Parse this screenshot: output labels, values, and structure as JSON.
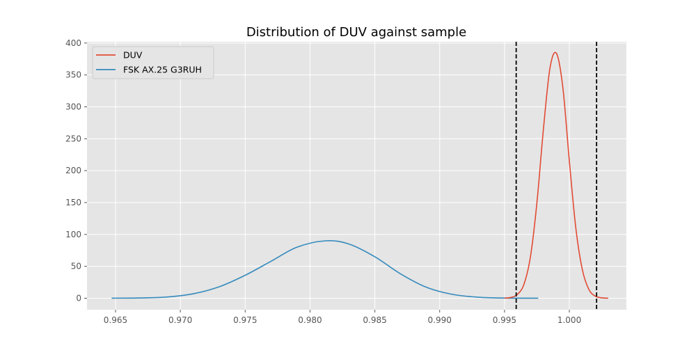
{
  "chart_data": {
    "type": "line",
    "title": "Distribution of DUV against sample",
    "xlabel": "",
    "ylabel": "",
    "xlim": [
      0.9628,
      1.0044
    ],
    "ylim": [
      -18,
      402
    ],
    "xticks": [
      0.965,
      0.97,
      0.975,
      0.98,
      0.985,
      0.99,
      0.995,
      1.0
    ],
    "xtick_labels": [
      "0.965",
      "0.970",
      "0.975",
      "0.980",
      "0.985",
      "0.990",
      "0.995",
      "1.000"
    ],
    "yticks": [
      0,
      50,
      100,
      150,
      200,
      250,
      300,
      350,
      400
    ],
    "ytick_labels": [
      "0",
      "50",
      "100",
      "150",
      "200",
      "250",
      "300",
      "350",
      "400"
    ],
    "grid": true,
    "legend_position": "top-left",
    "background": "#E5E5E5",
    "series": [
      {
        "name": "DUV",
        "color": "#E24A33",
        "x": [
          0.995,
          0.9955,
          0.996,
          0.9965,
          0.997,
          0.9975,
          0.998,
          0.9985,
          0.999,
          0.9995,
          1.0,
          1.0005,
          1.001,
          1.0015,
          1.002,
          1.0025,
          1.003
        ],
        "y": [
          0.2,
          1.3,
          6.0,
          22,
          65,
          150,
          265,
          360,
          384,
          330,
          215,
          110,
          45,
          14,
          3.3,
          0.6,
          0.1
        ]
      },
      {
        "name": "FSK AX.25 G3RUH",
        "color": "#348ABD",
        "x": [
          0.9647,
          0.967,
          0.969,
          0.971,
          0.973,
          0.975,
          0.977,
          0.979,
          0.9812,
          0.983,
          0.985,
          0.987,
          0.989,
          0.991,
          0.993,
          0.995,
          0.9976
        ],
        "y": [
          0.1,
          0.5,
          2,
          7,
          18,
          36,
          58,
          80,
          90,
          85,
          65,
          38,
          17,
          6,
          1.6,
          0.3,
          0.02
        ]
      }
    ],
    "vlines": [
      {
        "x": 0.9959,
        "color": "#000000",
        "style": "dashed"
      },
      {
        "x": 1.0021,
        "color": "#000000",
        "style": "dashed"
      }
    ]
  }
}
